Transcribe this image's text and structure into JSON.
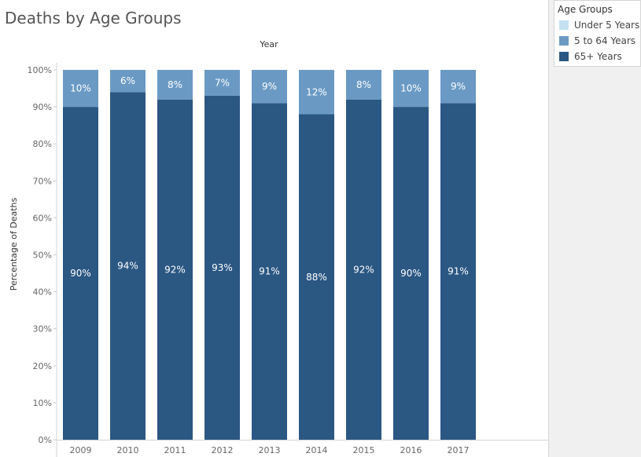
{
  "title": "Deaths by Age Groups",
  "legend": {
    "title": "Age Groups",
    "items": [
      {
        "label": "Under 5 Years",
        "color": "#c5e0f1"
      },
      {
        "label": "5 to 64 Years",
        "color": "#6a9ac4"
      },
      {
        "label": "65+ Years",
        "color": "#2b5783"
      }
    ]
  },
  "chart_data": {
    "type": "bar",
    "stacked": true,
    "title": "Deaths by Age Groups",
    "xlabel": "Year",
    "ylabel": "Percentage of Deaths",
    "ylim": [
      0,
      100
    ],
    "yticks": [
      "0%",
      "10%",
      "20%",
      "30%",
      "40%",
      "50%",
      "60%",
      "70%",
      "80%",
      "90%",
      "100%"
    ],
    "grid": false,
    "legend_position": "top-right",
    "categories": [
      "2009",
      "2010",
      "2011",
      "2012",
      "2013",
      "2014",
      "2015",
      "2016",
      "2017"
    ],
    "series": [
      {
        "name": "65+ Years",
        "color": "#2b5783",
        "values": [
          90,
          94,
          92,
          93,
          91,
          88,
          92,
          90,
          91
        ],
        "labels": [
          "90%",
          "94%",
          "92%",
          "93%",
          "91%",
          "88%",
          "92%",
          "90%",
          "91%"
        ]
      },
      {
        "name": "5 to 64 Years",
        "color": "#6a9ac4",
        "values": [
          10,
          6,
          8,
          7,
          9,
          12,
          8,
          10,
          9
        ],
        "labels": [
          "10%",
          "6%",
          "8%",
          "7%",
          "9%",
          "12%",
          "8%",
          "10%",
          "9%"
        ]
      },
      {
        "name": "Under 5 Years",
        "color": "#c5e0f1",
        "values": [
          0,
          0,
          0,
          0,
          0,
          0,
          0,
          0,
          0
        ],
        "labels": []
      }
    ]
  }
}
